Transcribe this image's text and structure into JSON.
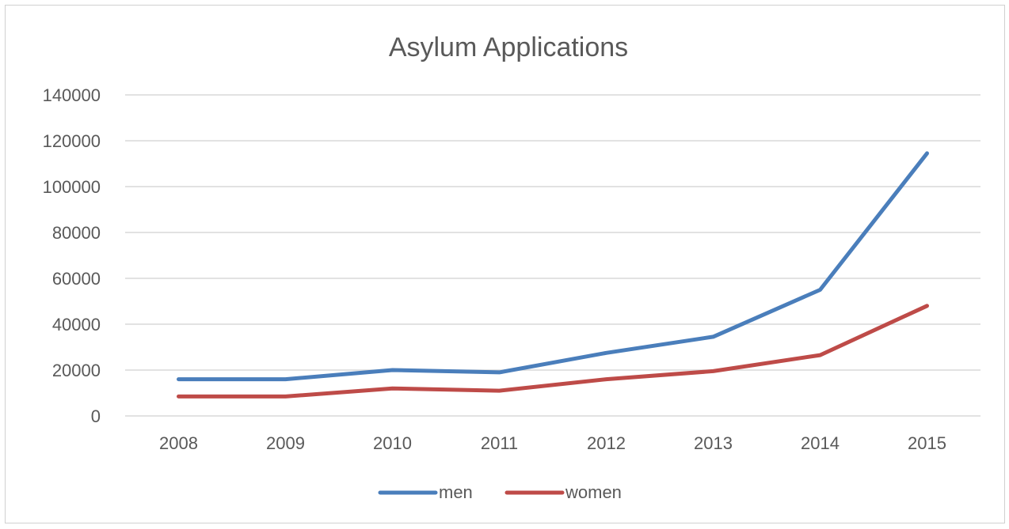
{
  "chart_data": {
    "type": "line",
    "title": "Asylum Applications",
    "categories": [
      "2008",
      "2009",
      "2010",
      "2011",
      "2012",
      "2013",
      "2014",
      "2015"
    ],
    "ylim": [
      0,
      140000
    ],
    "yticks": [
      0,
      20000,
      40000,
      60000,
      80000,
      100000,
      120000,
      140000
    ],
    "ytick_labels": [
      "0",
      "20000",
      "40000",
      "60000",
      "80000",
      "100000",
      "120000",
      "140000"
    ],
    "grid": true,
    "legend_position": "bottom",
    "series": [
      {
        "name": "men",
        "color": "#4a7ebb",
        "values": [
          16000,
          16000,
          20000,
          19000,
          27500,
          34500,
          55000,
          114500
        ]
      },
      {
        "name": "women",
        "color": "#be4b48",
        "values": [
          8500,
          8500,
          12000,
          11000,
          16000,
          19500,
          26500,
          48000
        ]
      }
    ]
  }
}
